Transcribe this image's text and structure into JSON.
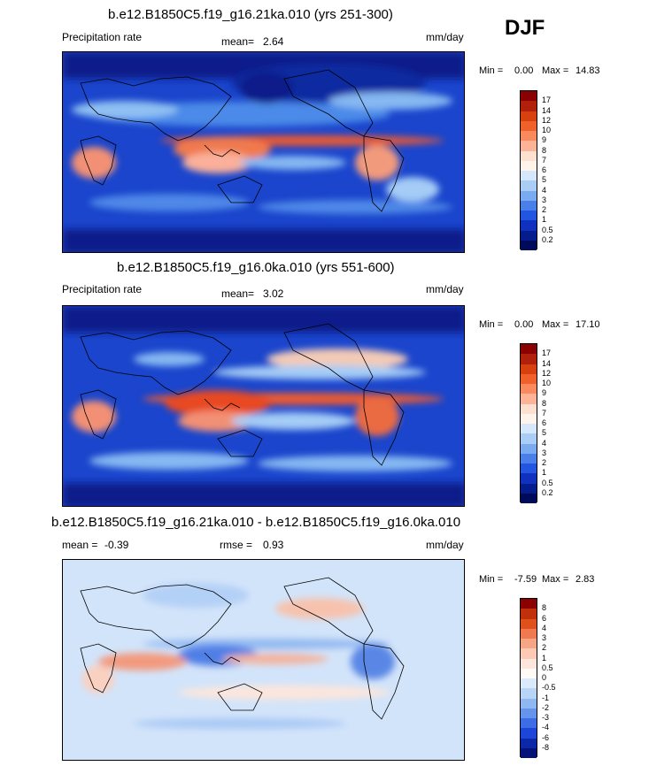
{
  "season": "DJF",
  "panels": [
    {
      "title": "b.e12.B1850C5.f19_g16.21ka.010 (yrs 251-300)",
      "left_label": "Precipitation rate",
      "mid_label": "mean=",
      "mid_value": "2.64",
      "units": "mm/day",
      "min_label": "Min =",
      "min_value": "0.00",
      "max_label": "Max =",
      "max_value": "14.83",
      "colorbar": {
        "levels": [
          "17",
          "14",
          "12",
          "10",
          "9",
          "8",
          "7",
          "6",
          "5",
          "4",
          "3",
          "2",
          "1",
          "0.5",
          "0.2"
        ],
        "colors": [
          "#8b0000",
          "#b0200a",
          "#d9400f",
          "#f0602a",
          "#fa8a5e",
          "#fdb397",
          "#fde0d0",
          "#fff3ea",
          "#d4e7fb",
          "#a9cdf5",
          "#7aaaf0",
          "#4a7fea",
          "#2255e0",
          "#1030c0",
          "#041c8c",
          "#000a5a"
        ]
      }
    },
    {
      "title": "b.e12.B1850C5.f19_g16.0ka.010 (yrs 551-600)",
      "left_label": "Precipitation rate",
      "mid_label": "mean=",
      "mid_value": "3.02",
      "units": "mm/day",
      "min_label": "Min =",
      "min_value": "0.00",
      "max_label": "Max =",
      "max_value": "17.10",
      "colorbar": {
        "levels": [
          "17",
          "14",
          "12",
          "10",
          "9",
          "8",
          "7",
          "6",
          "5",
          "4",
          "3",
          "2",
          "1",
          "0.5",
          "0.2"
        ],
        "colors": [
          "#8b0000",
          "#b0200a",
          "#d9400f",
          "#f0602a",
          "#fa8a5e",
          "#fdb397",
          "#fde0d0",
          "#fff3ea",
          "#d4e7fb",
          "#a9cdf5",
          "#7aaaf0",
          "#4a7fea",
          "#2255e0",
          "#1030c0",
          "#041c8c",
          "#000a5a"
        ]
      }
    },
    {
      "title": "b.e12.B1850C5.f19_g16.21ka.010 - b.e12.B1850C5.f19_g16.0ka.010",
      "left_label": "mean =",
      "left_value": "-0.39",
      "mid_label": "rmse =",
      "mid_value": "0.93",
      "units": "mm/day",
      "min_label": "Min =",
      "min_value": "-7.59",
      "max_label": "Max =",
      "max_value": "2.83",
      "colorbar": {
        "levels": [
          "8",
          "6",
          "4",
          "3",
          "2",
          "1",
          "0.5",
          "0",
          "-0.5",
          "-1",
          "-2",
          "-3",
          "-4",
          "-6",
          "-8"
        ],
        "colors": [
          "#8b0000",
          "#c0300a",
          "#e0501a",
          "#f07a50",
          "#f8a585",
          "#fcc9b5",
          "#fde6dc",
          "#fffaf5",
          "#dbeafb",
          "#b8d5f7",
          "#8fb8f2",
          "#6694ec",
          "#3d6de6",
          "#1d45d8",
          "#0a28a8",
          "#04127a"
        ]
      }
    }
  ]
}
